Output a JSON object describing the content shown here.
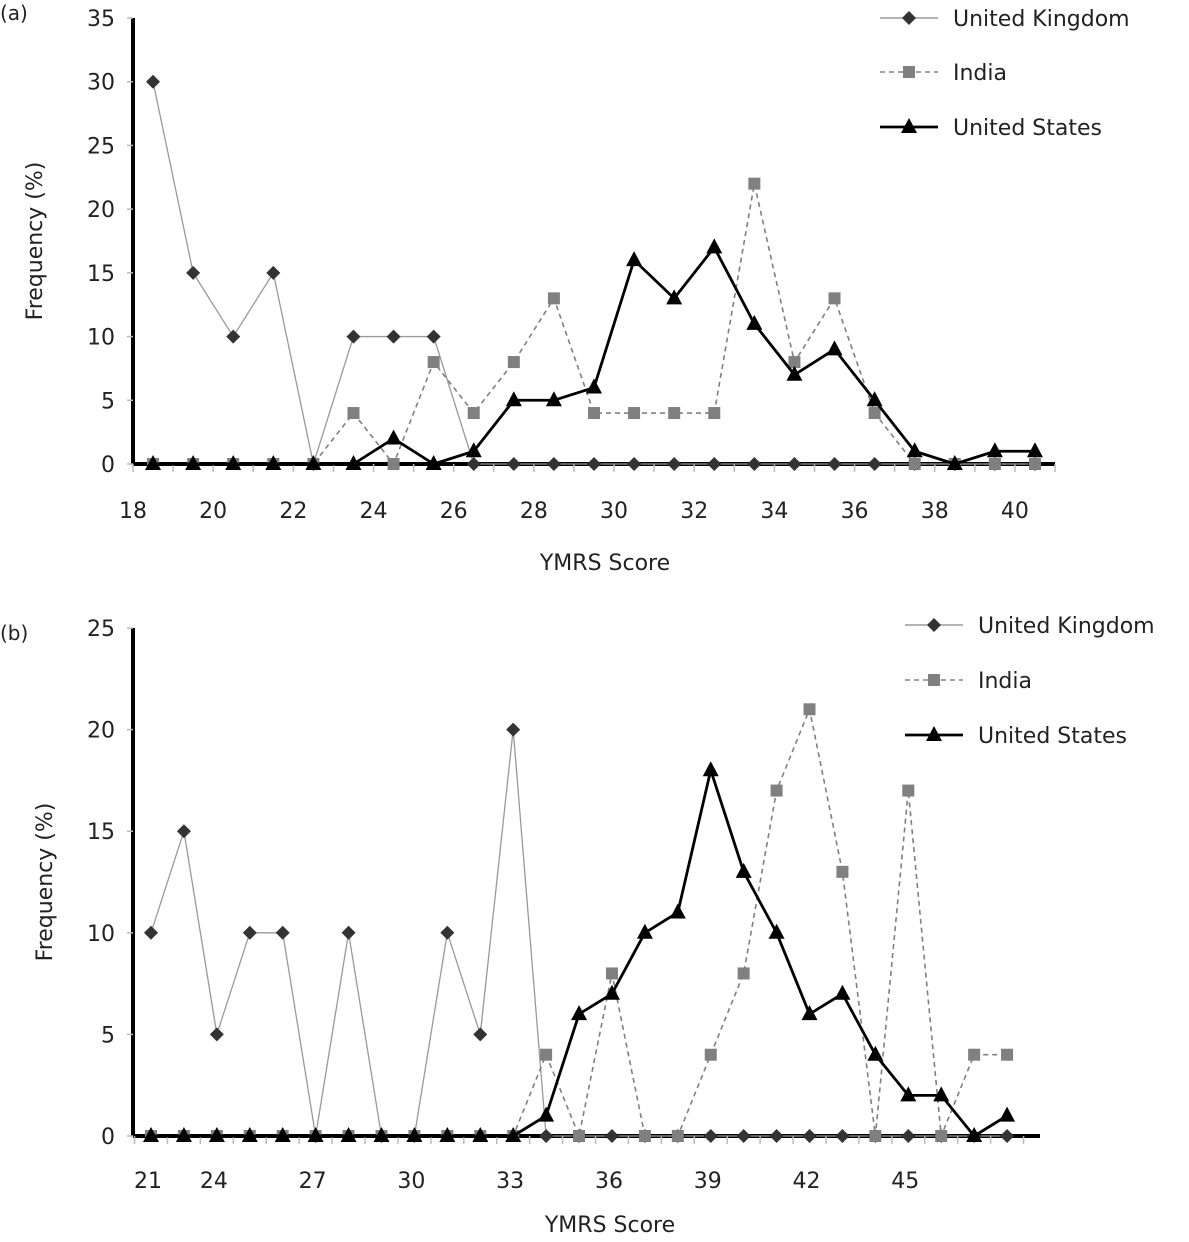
{
  "colors": {
    "uk": "#333333",
    "uk_line": "#999999",
    "india": "#808080",
    "us": "#000000"
  },
  "chart_data": [
    {
      "type": "line",
      "panel_label": "(a)",
      "xlabel": "YMRS Score",
      "ylabel": "Frequency (%)",
      "xlim": [
        18,
        41
      ],
      "ylim": [
        0,
        35
      ],
      "xticks": [
        18,
        20,
        22,
        24,
        26,
        28,
        30,
        32,
        34,
        36,
        38,
        40
      ],
      "yticks": [
        0,
        5,
        10,
        15,
        20,
        25,
        30,
        35
      ],
      "grid": false,
      "legend": "top-right",
      "x": [
        18.5,
        19.5,
        20.5,
        21.5,
        22.5,
        23.5,
        24.5,
        25.5,
        26.5,
        27.5,
        28.5,
        29.5,
        30.5,
        31.5,
        32.5,
        33.5,
        34.5,
        35.5,
        36.5,
        37.5,
        38.5,
        39.5,
        40.5
      ],
      "series": [
        {
          "name": "United Kingdom",
          "marker": "diamond",
          "values": [
            30,
            15,
            10,
            15,
            0,
            10,
            10,
            10,
            0,
            0,
            0,
            0,
            0,
            0,
            0,
            0,
            0,
            0,
            0,
            0,
            0,
            0,
            0
          ]
        },
        {
          "name": "India",
          "marker": "square",
          "values": [
            0,
            0,
            0,
            0,
            0,
            4,
            0,
            8,
            4,
            8,
            13,
            4,
            4,
            4,
            4,
            22,
            8,
            13,
            4,
            0,
            0,
            0,
            0
          ]
        },
        {
          "name": "United States",
          "marker": "triangle",
          "values": [
            0,
            0,
            0,
            0,
            0,
            0,
            2,
            0,
            1,
            5,
            5,
            6,
            16,
            13,
            17,
            11,
            7,
            9,
            5,
            1,
            0,
            1,
            1
          ]
        }
      ]
    },
    {
      "type": "line",
      "panel_label": "(b)",
      "xlabel": "YMRS Score",
      "ylabel": "Frequency (%)",
      "ylim": [
        0,
        25
      ],
      "yticks": [
        0,
        5,
        10,
        15,
        20,
        25
      ],
      "grid": false,
      "legend": "top-right",
      "categories": [
        "21",
        "",
        "24",
        "",
        "",
        "27",
        "",
        "",
        "30",
        "",
        "",
        "33",
        "",
        "",
        "36",
        "",
        "",
        "39",
        "",
        "",
        "42",
        "",
        "",
        "45",
        "",
        "",
        ""
      ],
      "series": [
        {
          "name": "United Kingdom",
          "marker": "diamond",
          "values": [
            10,
            15,
            5,
            10,
            10,
            0,
            10,
            0,
            0,
            10,
            5,
            20,
            0,
            0,
            0,
            0,
            0,
            0,
            0,
            0,
            0,
            0,
            0,
            0,
            0,
            0,
            0
          ]
        },
        {
          "name": "India",
          "marker": "square",
          "values": [
            0,
            0,
            0,
            0,
            0,
            0,
            0,
            0,
            0,
            0,
            0,
            0,
            4,
            0,
            8,
            0,
            0,
            4,
            8,
            17,
            21,
            13,
            0,
            17,
            0,
            4,
            4
          ]
        },
        {
          "name": "United States",
          "marker": "triangle",
          "values": [
            0,
            0,
            0,
            0,
            0,
            0,
            0,
            0,
            0,
            0,
            0,
            0,
            1,
            6,
            7,
            10,
            11,
            18,
            13,
            10,
            6,
            7,
            4,
            2,
            2,
            0,
            1
          ]
        }
      ]
    }
  ]
}
